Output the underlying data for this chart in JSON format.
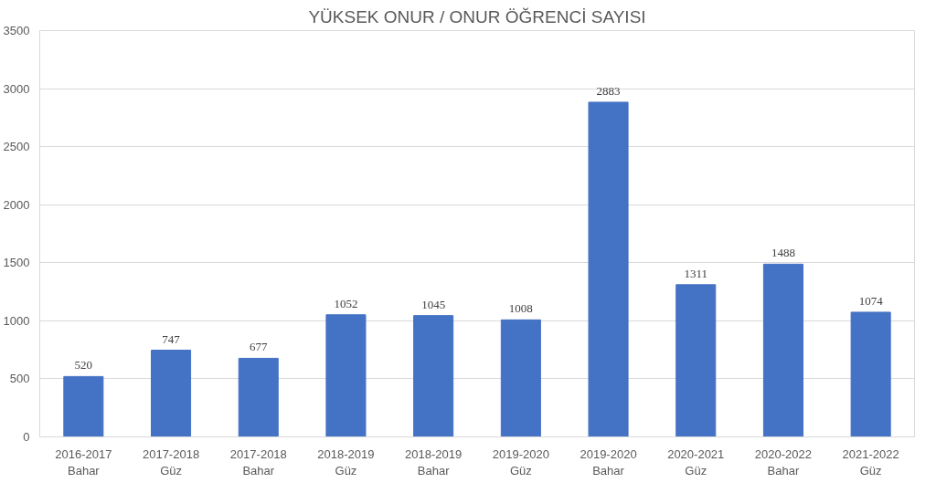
{
  "chart_data": {
    "type": "bar",
    "title": "YÜKSEK ONUR / ONUR ÖĞRENCİ SAYISI",
    "categories": [
      "2016-2017\nBahar",
      "2017-2018\nGüz",
      "2017-2018\nBahar",
      "2018-2019\nGüz",
      "2018-2019\nBahar",
      "2019-2020\nGüz",
      "2019-2020\nBahar",
      "2020-2021\nGüz",
      "2020-2022\nBahar",
      "2021-2022\nGüz"
    ],
    "values": [
      520,
      747,
      677,
      1052,
      1045,
      1008,
      2883,
      1311,
      1488,
      1074
    ],
    "color": "#4472c4",
    "ylim": [
      0,
      3500
    ],
    "yticks": [
      0,
      500,
      1000,
      1500,
      2000,
      2500,
      3000,
      3500
    ],
    "grid": "y",
    "data_labels": true
  }
}
